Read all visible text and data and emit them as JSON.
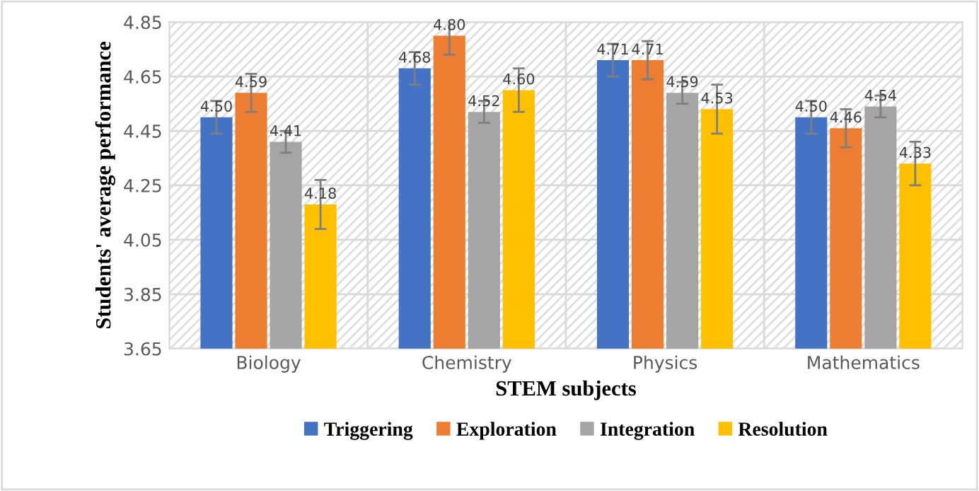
{
  "chart_data": {
    "type": "bar",
    "xlabel": "STEM subjects",
    "ylabel": "Students' average performance",
    "categories": [
      "Biology",
      "Chemistry",
      "Physics",
      "Mathematics"
    ],
    "series": [
      {
        "name": "Triggering",
        "color": "#4472c4",
        "values": [
          4.5,
          4.68,
          4.71,
          4.5
        ],
        "value_labels": [
          "4.50",
          "4.68",
          "4.71",
          "4.50"
        ],
        "errors": [
          0.06,
          0.06,
          0.06,
          0.06
        ]
      },
      {
        "name": "Exploration",
        "color": "#ed7d31",
        "values": [
          4.59,
          4.8,
          4.71,
          4.46
        ],
        "value_labels": [
          "4.59",
          "4.80",
          "4.71",
          "4.46"
        ],
        "errors": [
          0.07,
          0.07,
          0.07,
          0.07
        ]
      },
      {
        "name": "Integration",
        "color": "#a5a5a5",
        "values": [
          4.41,
          4.52,
          4.59,
          4.54
        ],
        "value_labels": [
          "4.41",
          "4.52",
          "4.59",
          "4.54"
        ],
        "errors": [
          0.04,
          0.04,
          0.04,
          0.04
        ]
      },
      {
        "name": "Resolution",
        "color": "#ffc000",
        "values": [
          4.18,
          4.6,
          4.53,
          4.33
        ],
        "value_labels": [
          "4.18",
          "4.60",
          "4.53",
          "4.33"
        ],
        "errors": [
          0.09,
          0.08,
          0.09,
          0.08
        ]
      }
    ],
    "ylim": [
      3.65,
      4.85
    ],
    "yticks": [
      3.65,
      3.85,
      4.05,
      4.25,
      4.45,
      4.65,
      4.85
    ],
    "grid": true,
    "legend": "bottom"
  }
}
